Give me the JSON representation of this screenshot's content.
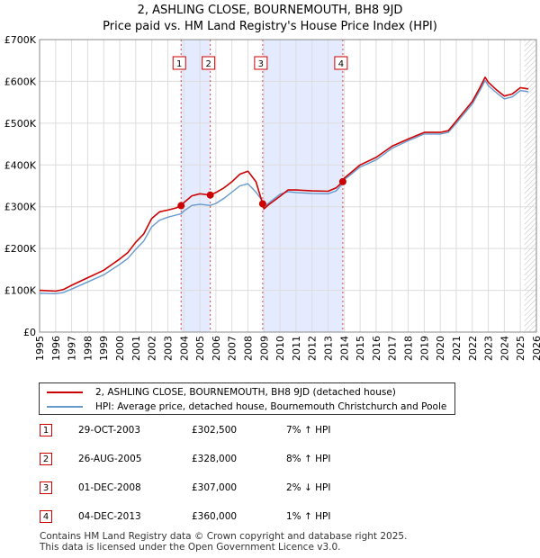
{
  "title": "2, ASHLING CLOSE, BOURNEMOUTH, BH8 9JD",
  "subtitle": "Price paid vs. HM Land Registry's House Price Index (HPI)",
  "colors": {
    "property": "#cc0000",
    "hpi": "#6699cc",
    "shade": "#dde6ff",
    "marker_border": "#cc0000"
  },
  "legend": {
    "property_label": "2, ASHLING CLOSE, BOURNEMOUTH, BH8 9JD (detached house)",
    "hpi_label": "HPI: Average price, detached house, Bournemouth Christchurch and Poole"
  },
  "sales": [
    {
      "num": "1",
      "date": "29-OCT-2003",
      "price": "£302,500",
      "hpi": "7% ↑ HPI"
    },
    {
      "num": "2",
      "date": "26-AUG-2005",
      "price": "£328,000",
      "hpi": "8% ↑ HPI"
    },
    {
      "num": "3",
      "date": "01-DEC-2008",
      "price": "£307,000",
      "hpi": "2% ↓ HPI"
    },
    {
      "num": "4",
      "date": "04-DEC-2013",
      "price": "£360,000",
      "hpi": "1% ↑ HPI"
    }
  ],
  "footer": {
    "line1": "Contains HM Land Registry data © Crown copyright and database right 2025.",
    "line2": "This data is licensed under the Open Government Licence v3.0."
  },
  "chart_data": {
    "type": "line",
    "title": "2, ASHLING CLOSE, BOURNEMOUTH, BH8 9JD",
    "subtitle": "Price paid vs. HM Land Registry's House Price Index (HPI)",
    "xlim": [
      1995,
      2026
    ],
    "ylim": [
      0,
      700000
    ],
    "x_ticks": [
      1995,
      1996,
      1997,
      1998,
      1999,
      2000,
      2001,
      2002,
      2003,
      2004,
      2005,
      2006,
      2007,
      2008,
      2009,
      2010,
      2011,
      2012,
      2013,
      2014,
      2015,
      2016,
      2017,
      2018,
      2019,
      2020,
      2021,
      2022,
      2023,
      2024,
      2025,
      2026
    ],
    "y_ticks": [
      {
        "value": 0,
        "label": "£0"
      },
      {
        "value": 100000,
        "label": "£100K"
      },
      {
        "value": 200000,
        "label": "£200K"
      },
      {
        "value": 300000,
        "label": "£300K"
      },
      {
        "value": 400000,
        "label": "£400K"
      },
      {
        "value": 500000,
        "label": "£500K"
      },
      {
        "value": 600000,
        "label": "£600K"
      },
      {
        "value": 700000,
        "label": "£700K"
      }
    ],
    "grid": true,
    "shaded_ranges": [
      [
        2003.83,
        2005.65
      ],
      [
        2008.92,
        2013.92
      ]
    ],
    "hatched_from": 2025.25,
    "series": [
      {
        "name": "2, ASHLING CLOSE, BOURNEMOUTH, BH8 9JD (detached house)",
        "x": [
          1995,
          1996,
          1996.5,
          1997,
          1998,
          1999,
          2000,
          2000.5,
          2001,
          2001.5,
          2002,
          2002.5,
          2003,
          2003.5,
          2003.83,
          2004,
          2004.5,
          2005,
          2005.65,
          2006,
          2006.5,
          2007,
          2007.5,
          2008,
          2008.5,
          2008.92,
          2009,
          2009.3,
          2010,
          2010.5,
          2011,
          2012,
          2013,
          2013.5,
          2013.92,
          2014,
          2015,
          2016,
          2017,
          2018,
          2019,
          2020,
          2020.5,
          2021,
          2022,
          2022.5,
          2022.8,
          2023,
          2023.5,
          2024,
          2024.5,
          2025,
          2025.5
        ],
        "values": [
          100000,
          98000,
          102000,
          112000,
          130000,
          148000,
          175000,
          190000,
          215000,
          235000,
          272000,
          288000,
          292000,
          297000,
          302500,
          310000,
          326000,
          331000,
          328000,
          334000,
          345000,
          360000,
          378000,
          385000,
          360000,
          307000,
          295000,
          305000,
          325000,
          340000,
          340000,
          338000,
          337000,
          345000,
          360000,
          368000,
          400000,
          418000,
          445000,
          462000,
          478000,
          478000,
          482000,
          505000,
          552000,
          587000,
          610000,
          598000,
          580000,
          565000,
          570000,
          585000,
          582000
        ]
      },
      {
        "name": "HPI: Average price, detached house, Bournemouth Christchurch and Poole",
        "x": [
          1995,
          1996,
          1996.5,
          1997,
          1998,
          1999,
          2000,
          2000.5,
          2001,
          2001.5,
          2002,
          2002.5,
          2003,
          2003.5,
          2003.83,
          2004,
          2004.5,
          2005,
          2005.65,
          2006,
          2006.5,
          2007,
          2007.5,
          2008,
          2008.5,
          2008.92,
          2009,
          2009.3,
          2010,
          2010.5,
          2011,
          2012,
          2013,
          2013.5,
          2013.92,
          2014,
          2015,
          2016,
          2017,
          2018,
          2019,
          2020,
          2020.5,
          2021,
          2022,
          2022.5,
          2022.8,
          2023,
          2023.5,
          2024,
          2024.5,
          2025,
          2025.5
        ],
        "values": [
          93000,
          92000,
          95000,
          103000,
          120000,
          137000,
          162000,
          176000,
          198000,
          218000,
          252000,
          268000,
          275000,
          280000,
          283000,
          290000,
          303000,
          306000,
          303000,
          308000,
          320000,
          335000,
          350000,
          355000,
          335000,
          313000,
          300000,
          309000,
          330000,
          336000,
          334000,
          332000,
          331000,
          338000,
          356000,
          364000,
          395000,
          412000,
          440000,
          458000,
          474000,
          474000,
          478000,
          500000,
          546000,
          580000,
          602000,
          590000,
          573000,
          558000,
          563000,
          578000,
          575000
        ]
      }
    ],
    "sale_points": [
      {
        "label": "1",
        "x": 2003.83,
        "y": 302500
      },
      {
        "label": "2",
        "x": 2005.65,
        "y": 328000
      },
      {
        "label": "3",
        "x": 2008.92,
        "y": 307000
      },
      {
        "label": "4",
        "x": 2013.92,
        "y": 360000
      }
    ]
  }
}
